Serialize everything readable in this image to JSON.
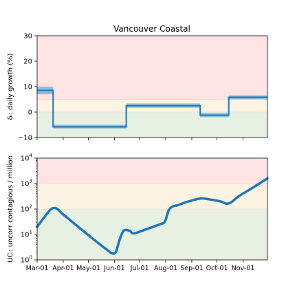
{
  "chart_data": [
    {
      "type": "line",
      "title": "Vancouver Coastal",
      "ylabel": "δᵢ: daily growth (%)",
      "ylim": [
        -10,
        30
      ],
      "yticks": [
        "30",
        "20",
        "10",
        "0",
        "−10"
      ],
      "ytick_values": [
        30,
        20,
        10,
        0,
        -10
      ],
      "xlim": [
        0,
        274
      ],
      "zones": [
        {
          "name": "red",
          "from": 5,
          "to": 30,
          "color": "#fde3e3"
        },
        {
          "name": "yellow",
          "from": 0,
          "to": 5,
          "color": "#fdf3e3"
        },
        {
          "name": "green",
          "from": -10,
          "to": 0,
          "color": "#e6f0e3"
        }
      ],
      "band_color": "#7fb4d9",
      "line_color": "#1f77b4",
      "series": [
        {
          "segments": [
            {
              "x0": 0,
              "x1": 19,
              "value": 8.5,
              "low": 7.0,
              "high": 10.0
            },
            {
              "x0": 19,
              "x1": 106,
              "value": -5.8,
              "low": -6.5,
              "high": -5.0
            },
            {
              "x0": 106,
              "x1": 194,
              "value": 2.5,
              "low": 1.7,
              "high": 3.4
            },
            {
              "x0": 194,
              "x1": 228,
              "value": -1.2,
              "low": -2.0,
              "high": -0.4
            },
            {
              "x0": 228,
              "x1": 274,
              "value": 5.8,
              "low": 5.0,
              "high": 6.6
            }
          ]
        }
      ]
    },
    {
      "type": "line",
      "ylabel": "UCᵢ: uncorr contagious / million",
      "yscale": "log",
      "ylim": [
        1,
        10000
      ],
      "ytick_values": [
        1,
        10,
        100,
        1000,
        10000
      ],
      "ytick_base": "10",
      "ytick_exps": [
        "0",
        "1",
        "2",
        "3",
        "4"
      ],
      "xlim": [
        0,
        274
      ],
      "x_tick_days": [
        0,
        31,
        61,
        92,
        122,
        153,
        184,
        214,
        245
      ],
      "x_tick_labels": [
        "Mar-01",
        "Apr-01",
        "May-01",
        "Jun-01",
        "Jul-01",
        "Aug-01",
        "Sep-01",
        "Oct-01",
        "Nov-01"
      ],
      "zones": [
        {
          "name": "red",
          "from": 1000,
          "to": 10000,
          "color": "#fde3e3"
        },
        {
          "name": "yellow",
          "from": 100,
          "to": 1000,
          "color": "#fdf3e3"
        },
        {
          "name": "green",
          "from": 1,
          "to": 100,
          "color": "#e6f0e3"
        }
      ],
      "line_color": "#1f77b4",
      "series": [
        {
          "x": [
            0,
            8,
            16,
            21,
            25,
            30,
            36,
            60,
            80,
            92,
            98,
            103,
            110,
            115,
            130,
            146,
            152,
            156,
            160,
            167,
            175,
            186,
            196,
            208,
            218,
            228,
            240,
            255,
            274
          ],
          "y": [
            20,
            45,
            95,
            110,
            95,
            65,
            45,
            10,
            3.0,
            1.8,
            6,
            14,
            14,
            11,
            16,
            25,
            32,
            80,
            120,
            140,
            175,
            225,
            260,
            230,
            200,
            165,
            320,
            640,
            1600
          ]
        }
      ]
    }
  ]
}
